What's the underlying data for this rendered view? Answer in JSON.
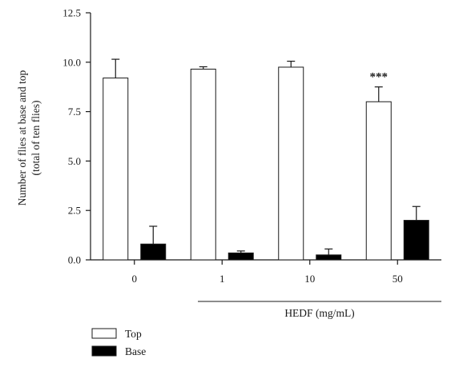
{
  "chart_data": {
    "type": "bar",
    "ylabel_lines": [
      "Number of flies at base and top",
      "(total of ten flies)"
    ],
    "xlabel": "HEDF (mg/mL)",
    "categories": [
      "0",
      "1",
      "10",
      "50"
    ],
    "ylim": [
      0,
      12.5
    ],
    "yticks": [
      "0.0",
      "2.5",
      "5.0",
      "7.5",
      "10.0",
      "12.5"
    ],
    "series": [
      {
        "name": "Top",
        "values": [
          9.2,
          9.65,
          9.75,
          8.0
        ],
        "errors": [
          0.95,
          0.12,
          0.3,
          0.75
        ],
        "fill": "#ffffff"
      },
      {
        "name": "Base",
        "values": [
          0.8,
          0.35,
          0.25,
          2.0
        ],
        "errors": [
          0.9,
          0.1,
          0.3,
          0.7
        ],
        "fill": "#000000"
      }
    ],
    "annotations": [
      {
        "category": "50",
        "series": "Top",
        "text": "***"
      }
    ],
    "grid": false,
    "legend_position": "bottom-left"
  }
}
